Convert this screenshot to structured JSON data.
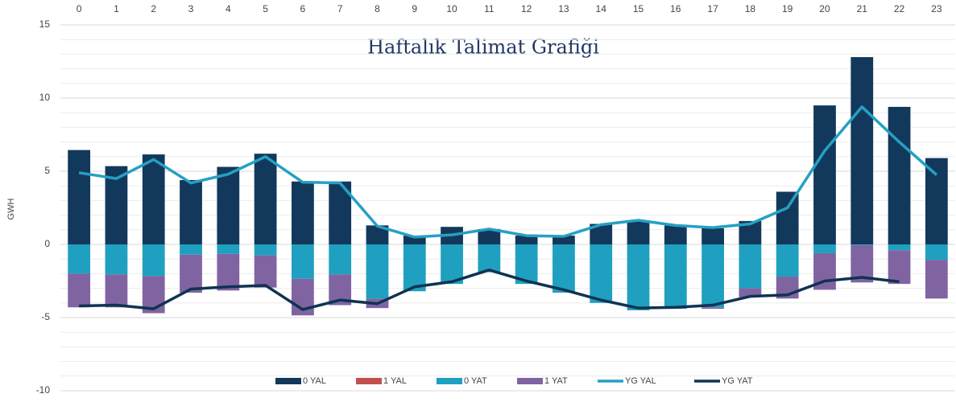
{
  "chart_data": {
    "type": "stacked_bar_line",
    "title": "Haftalık Talimat Grafiği",
    "y_label": "GWH",
    "categories": [
      "0",
      "1",
      "2",
      "3",
      "4",
      "5",
      "6",
      "7",
      "8",
      "9",
      "10",
      "11",
      "12",
      "13",
      "14",
      "15",
      "16",
      "17",
      "18",
      "19",
      "20",
      "21",
      "22",
      "23"
    ],
    "ylim": [
      -10,
      15
    ],
    "yticks": [
      -10,
      -5,
      0,
      5,
      10,
      15
    ],
    "grid": true,
    "minor_grid": 1,
    "legend": "bottom",
    "series": [
      {
        "name": "0 YAL",
        "kind": "bar",
        "color": "#12395b",
        "values": [
          6.45,
          5.35,
          6.15,
          4.4,
          5.3,
          6.2,
          4.3,
          4.3,
          1.3,
          0.6,
          1.2,
          1.05,
          0.6,
          0.6,
          1.4,
          1.6,
          1.3,
          1.1,
          1.6,
          3.6,
          9.5,
          12.8,
          9.4,
          5.9
        ]
      },
      {
        "name": "1 YAL",
        "kind": "bar",
        "color": "#c0504d",
        "values": [
          0,
          0,
          0,
          0,
          0,
          0,
          0,
          0,
          0,
          0,
          0,
          0,
          0,
          0,
          0,
          0,
          0,
          0,
          0,
          0,
          0,
          0,
          0,
          0
        ]
      },
      {
        "name": "0 YAT",
        "kind": "bar",
        "color": "#1fa0c0",
        "values": [
          -2.0,
          -2.05,
          -2.15,
          -0.7,
          -0.65,
          -0.75,
          -2.35,
          -2.05,
          -3.7,
          -3.2,
          -2.7,
          -1.9,
          -2.7,
          -3.3,
          -4.0,
          -4.5,
          -4.4,
          -4.3,
          -3.0,
          -2.2,
          -0.6,
          -0.05,
          -0.4,
          -1.05
        ]
      },
      {
        "name": "1 YAT",
        "kind": "bar",
        "color": "#8064a2",
        "values": [
          -2.3,
          -2.25,
          -2.55,
          -2.6,
          -2.5,
          -2.2,
          -2.5,
          -2.1,
          -0.65,
          0,
          0,
          0,
          0,
          0,
          0,
          0,
          0,
          -0.1,
          -0.6,
          -1.5,
          -2.5,
          -2.55,
          -2.3,
          -2.65
        ]
      },
      {
        "name": "YG YAL",
        "kind": "line",
        "color": "#25a0c4",
        "values": [
          4.9,
          4.5,
          5.8,
          4.2,
          4.8,
          6.0,
          4.25,
          4.2,
          1.25,
          0.5,
          0.65,
          1.05,
          0.6,
          0.55,
          1.35,
          1.65,
          1.3,
          1.15,
          1.4,
          2.5,
          6.4,
          9.4,
          7.0,
          4.75
        ]
      },
      {
        "name": "YG YAT",
        "kind": "line",
        "color": "#0f3352",
        "values": [
          -4.2,
          -4.15,
          -4.4,
          -3.05,
          -2.9,
          -2.8,
          -4.45,
          -3.8,
          -4.05,
          -2.9,
          -2.55,
          -1.75,
          -2.5,
          -3.1,
          -3.8,
          -4.35,
          -4.3,
          -4.15,
          -3.55,
          -3.45,
          -2.5,
          -2.25,
          -2.55,
          null
        ]
      }
    ]
  }
}
